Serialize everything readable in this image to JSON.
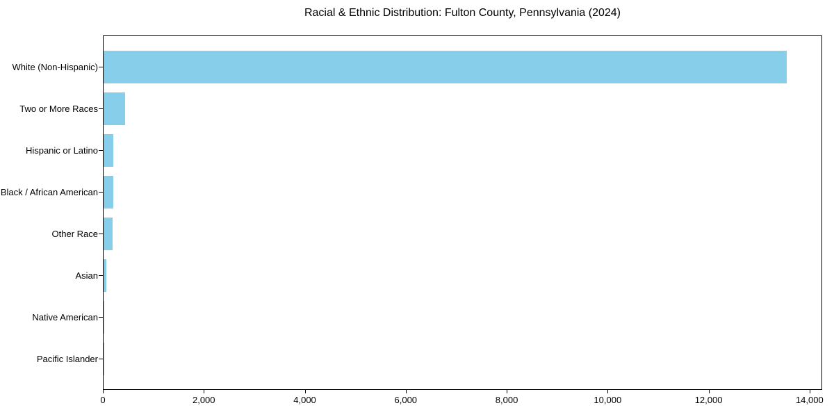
{
  "title": "Racial & Ethnic Distribution: Fulton County, Pennsylvania (2024)",
  "chart_data": {
    "type": "bar",
    "orientation": "horizontal",
    "title": "Racial & Ethnic Distribution: Fulton County, Pennsylvania (2024)",
    "xlabel": "",
    "ylabel": "",
    "categories": [
      "White (Non-Hispanic)",
      "Two or More Races",
      "Hispanic or Latino",
      "Black / African American",
      "Other Race",
      "Asian",
      "Native American",
      "Pacific Islander"
    ],
    "values": [
      13560,
      425,
      200,
      196,
      178,
      60,
      10,
      3
    ],
    "xlim": [
      0,
      14250
    ],
    "x_ticks": [
      0,
      2000,
      4000,
      6000,
      8000,
      10000,
      12000,
      14000
    ],
    "x_tick_labels": [
      "0",
      "2,000",
      "4,000",
      "6,000",
      "8,000",
      "10,000",
      "12,000",
      "14,000"
    ],
    "bar_color": "#87CEEB",
    "grid": false,
    "legend_position": "none"
  }
}
